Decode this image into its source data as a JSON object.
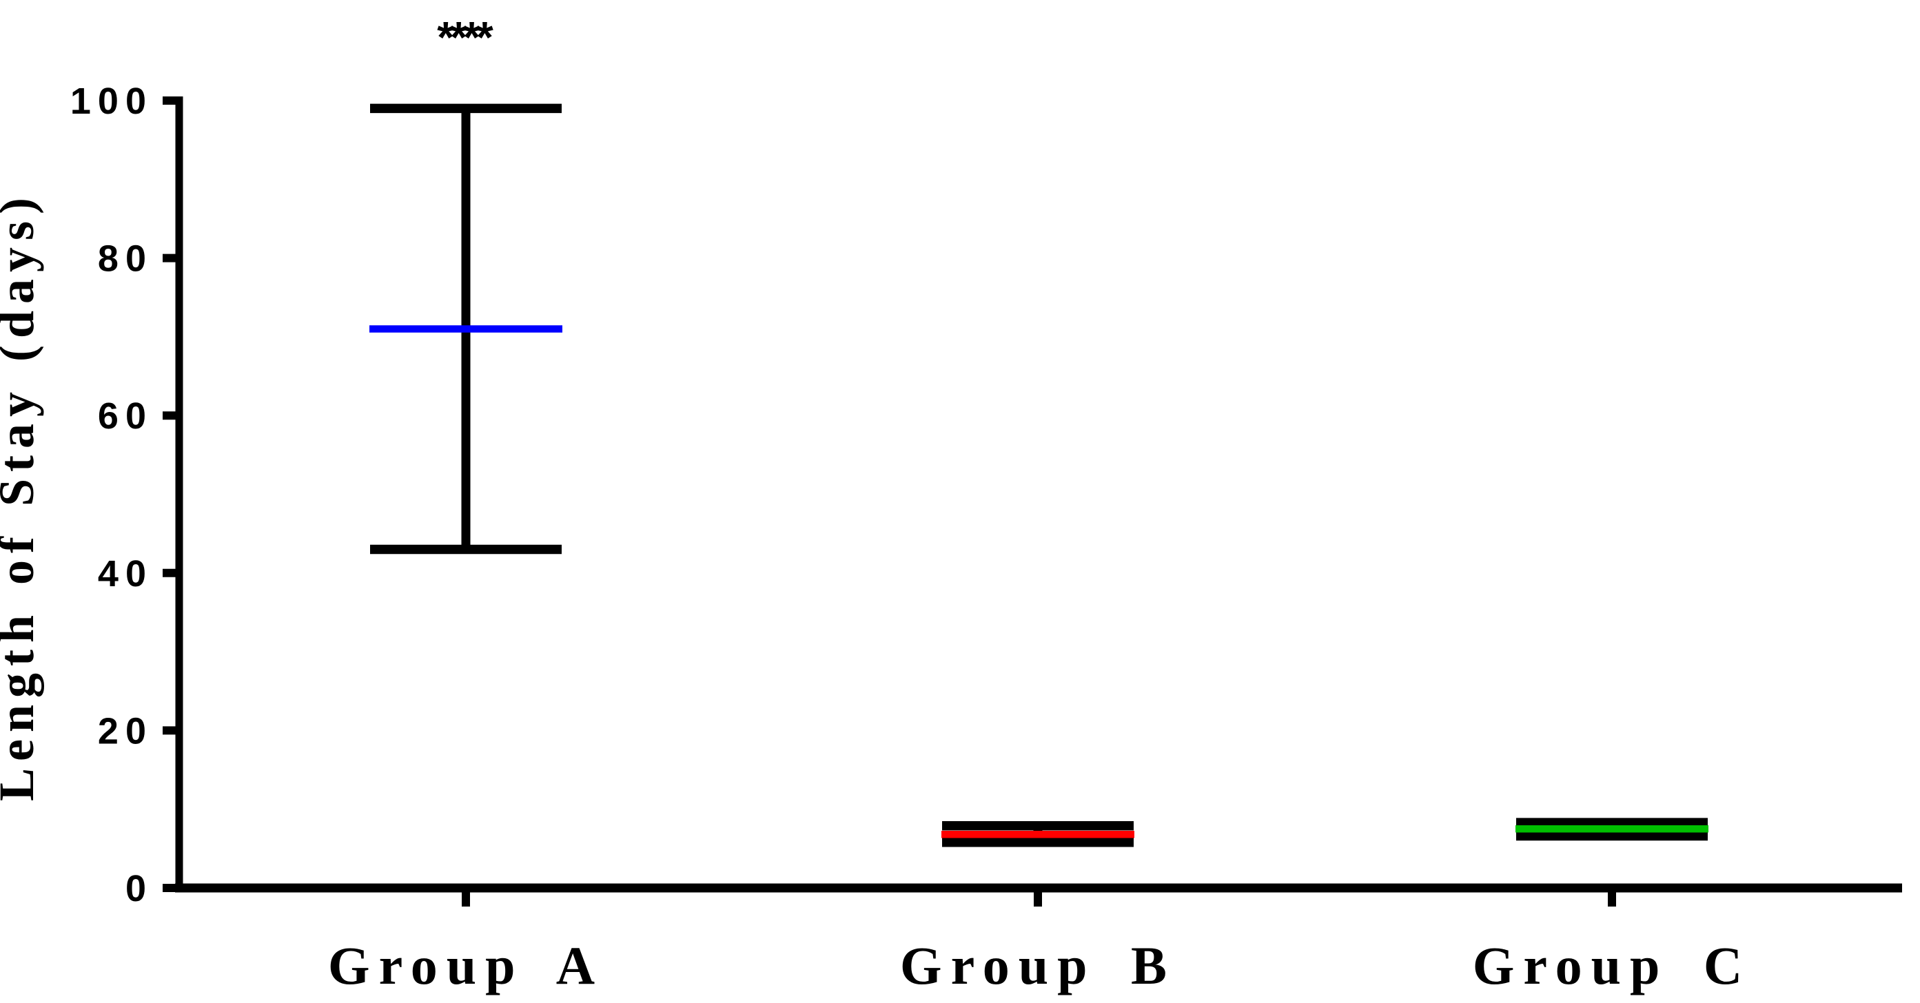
{
  "figure": {
    "background": "#FFFFFF",
    "significance_label": "****"
  },
  "chart_data": {
    "type": "bar",
    "variant": "min-median-max whisker bars (GraphPad-style)",
    "title": "",
    "xlabel": "",
    "ylabel": "Length of Stay (days)",
    "ylim": [
      0,
      100
    ],
    "yticks": [
      0,
      20,
      40,
      60,
      80,
      100
    ],
    "ytick_labels": [
      "0",
      "20",
      "40",
      "60",
      "80",
      "100"
    ],
    "grid": false,
    "legend": "none",
    "categories": [
      "Group A",
      "Group B",
      "Group C"
    ],
    "groups": [
      {
        "label": "Group A",
        "min": 43,
        "median": 71,
        "max": 99,
        "median_color": "#0000FF",
        "bar_color": "#000000",
        "annotation": "****"
      },
      {
        "label": "Group B",
        "min": 5.8,
        "median": 6.8,
        "max": 7.9,
        "median_color": "#FF0000",
        "bar_color": "#000000",
        "annotation": ""
      },
      {
        "label": "Group C",
        "min": 6.6,
        "median": 7.5,
        "max": 8.3,
        "median_color": "#00C000",
        "bar_color": "#000000",
        "annotation": ""
      }
    ],
    "annotations": [
      {
        "text": "****",
        "group": "Group A",
        "position": "above max whisker"
      }
    ],
    "axis_color": "#000000"
  }
}
